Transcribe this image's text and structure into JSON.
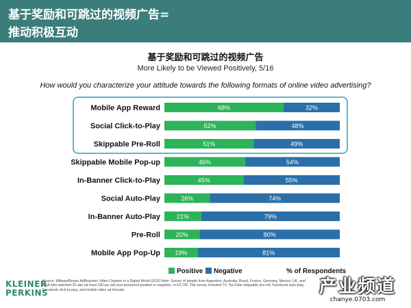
{
  "header": {
    "line1": "基于奖励和可跳过的视频广告=",
    "line2": "推动积极互动"
  },
  "chart_data": {
    "type": "bar",
    "stacked": true,
    "orientation": "horizontal",
    "title": "基于奖励和可跳过的视频广告",
    "subtitle": "More Likely to be Viewed Positively, 5/16",
    "question": "How would you characterize your attitude towards the following formats of online video advertising?",
    "categories": [
      "Mobile App Reward",
      "Social Click-to-Play",
      "Skippable Pre-Roll",
      "Skippable Mobile Pop-up",
      "In-Banner Click-to-Play",
      "Social Auto-Play",
      "In-Banner Auto-Play",
      "Pre-Roll",
      "Mobile App Pop-Up"
    ],
    "series": [
      {
        "name": "Positive",
        "color": "#2db35a",
        "values": [
          68,
          52,
          51,
          46,
          45,
          26,
          21,
          20,
          19
        ]
      },
      {
        "name": "Negative",
        "color": "#2a6fa8",
        "values": [
          32,
          48,
          49,
          54,
          55,
          74,
          79,
          80,
          81
        ]
      }
    ],
    "value_suffix": "%",
    "xlim": [
      0,
      100
    ],
    "highlighted_categories": [
      "Mobile App Reward",
      "Social Click-to-Play",
      "Skippable Pre-Roll"
    ],
    "legend_position": "bottom",
    "legend_note": "% of Respondents"
  },
  "footer": {
    "logo": "KLEINER PERKINS",
    "source": "Source: MillwardBrown AdReaction Video Creative in a Digital World (5/16) Note: Survey of people from Argentina, Australia, Brazil, France, Germany, Mexico, UK, and USA who watched 20 ads (at least 100 per ad) and answered positive or negative, n=10,739. The survey included TV, YouTube skippable pre-roll, Facebook auto-play, Facebook click-to-play, and mobile video ad formats."
  },
  "watermark": {
    "main": "产业频道",
    "url": "chanye.0703.com"
  }
}
